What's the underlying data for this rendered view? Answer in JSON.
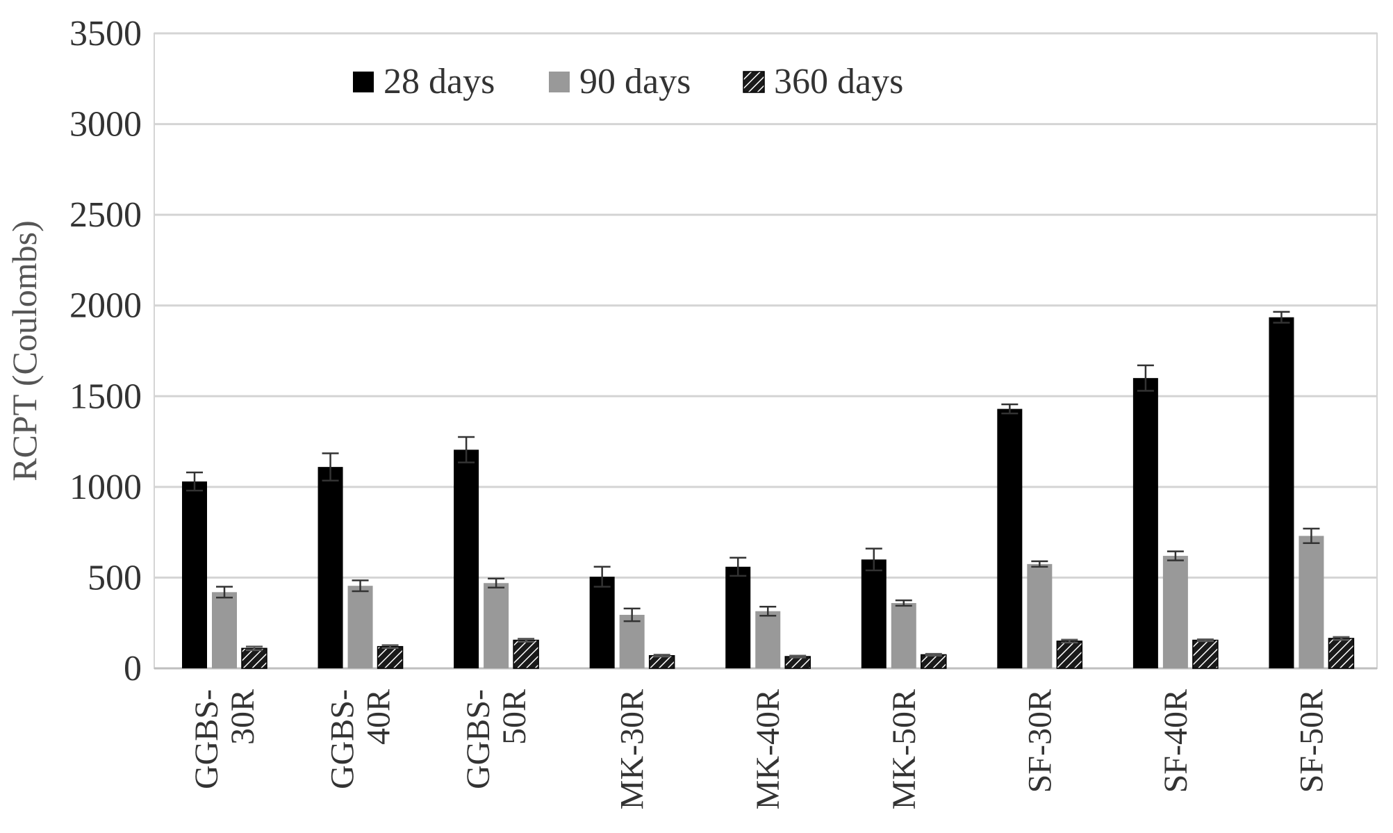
{
  "chart_data": {
    "type": "bar",
    "title": "",
    "xlabel": "",
    "ylabel": "RCPT (Coulombs)",
    "ylim": [
      0,
      3500
    ],
    "yticks": [
      0,
      500,
      1000,
      1500,
      2000,
      2500,
      3000,
      3500
    ],
    "grid": true,
    "legend_position": "top",
    "categories": [
      [
        "GGBS-",
        "30R"
      ],
      [
        "GGBS-",
        "40R"
      ],
      [
        "GGBS-",
        "50R"
      ],
      [
        "MK-30R"
      ],
      [
        "MK-40R"
      ],
      [
        "MK-50R"
      ],
      [
        "SF-30R"
      ],
      [
        "SF-40R"
      ],
      [
        "SF-50R"
      ]
    ],
    "series": [
      {
        "name": "28 days",
        "color": "#000000",
        "pattern": "solid",
        "values": [
          1030,
          1110,
          1205,
          505,
          560,
          600,
          1430,
          1600,
          1935
        ],
        "errors": [
          50,
          75,
          70,
          55,
          50,
          60,
          25,
          70,
          30
        ]
      },
      {
        "name": "90 days",
        "color": "#999999",
        "pattern": "solid",
        "values": [
          420,
          455,
          470,
          295,
          315,
          360,
          575,
          620,
          730
        ],
        "errors": [
          30,
          30,
          25,
          35,
          25,
          15,
          15,
          25,
          40
        ]
      },
      {
        "name": "360 days",
        "color": "#1a1a1a",
        "pattern": "hatched",
        "values": [
          110,
          120,
          155,
          70,
          65,
          75,
          150,
          155,
          165
        ],
        "errors": [
          10,
          8,
          8,
          5,
          5,
          5,
          8,
          5,
          8
        ]
      }
    ]
  }
}
